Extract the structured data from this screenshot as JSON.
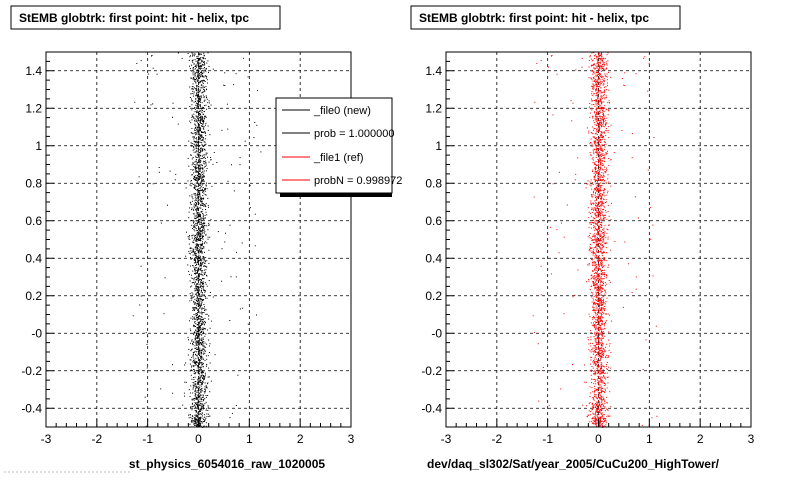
{
  "chart_data": [
    {
      "type": "scatter",
      "title": "StEMB globtrk: first point: hit - helix, tpc",
      "xlabel": "st_physics_6054016_raw_1020005",
      "ylabel": "",
      "xlim": [
        -3,
        3
      ],
      "ylim": [
        -0.5,
        1.5
      ],
      "x_ticks": [
        "-3",
        "-2",
        "-1",
        "0",
        "1",
        "2",
        "3"
      ],
      "y_ticks": [
        "-0.4",
        "-0.2",
        "-0",
        "0.2",
        "0.4",
        "0.6",
        "0.8",
        "1",
        "1.2",
        "1.4"
      ],
      "grid": true,
      "point_color": "#000000",
      "series": [
        {
          "name": "_file0 (new)",
          "color": "#000000",
          "x_center": 0.0,
          "x_spread": 0.12,
          "y_range": [
            -0.5,
            1.5
          ]
        }
      ],
      "legend": {
        "position": "top-right",
        "entries": [
          {
            "label": "_file0 (new)",
            "color": "#000000"
          },
          {
            "label": "prob = 1.000000",
            "color": "#000000"
          },
          {
            "label": "_file1 (ref)",
            "color": "#ff0000"
          },
          {
            "label": "probN = 0.998972",
            "color": "#ff0000"
          }
        ]
      }
    },
    {
      "type": "scatter",
      "title": "StEMB globtrk: first point: hit - helix, tpc",
      "xlabel": "dev/daq_sl302/Sat/year_2005/CuCu200_HighTower/",
      "ylabel": "",
      "xlim": [
        -3,
        3
      ],
      "ylim": [
        -0.5,
        1.5
      ],
      "x_ticks": [
        "-3",
        "-2",
        "-1",
        "0",
        "1",
        "2",
        "3"
      ],
      "y_ticks": [
        "-0.4",
        "-0.2",
        "-0",
        "0.2",
        "0.4",
        "0.6",
        "0.8",
        "1",
        "1.2",
        "1.4"
      ],
      "grid": true,
      "point_color": "#ff0000",
      "series": [
        {
          "name": "_file1 (ref)",
          "color": "#ff0000",
          "x_center": 0.0,
          "x_spread": 0.12,
          "y_range": [
            -0.5,
            1.5
          ]
        }
      ]
    }
  ]
}
